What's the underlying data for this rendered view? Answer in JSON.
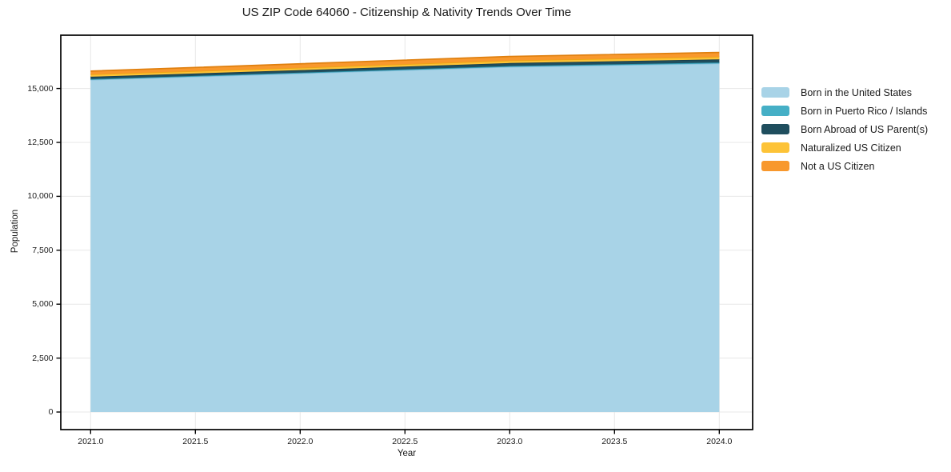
{
  "chart_data": {
    "type": "area",
    "stacked": true,
    "title": "US ZIP Code 64060 - Citizenship & Nativity Trends Over Time",
    "xlabel": "Year",
    "ylabel": "Population",
    "x": [
      2021,
      2022,
      2023,
      2024
    ],
    "series": [
      {
        "name": "Born in the United States",
        "values": [
          15400,
          15700,
          16000,
          16160
        ],
        "color": "#a8d3e7",
        "line_color": "#8ac1dc"
      },
      {
        "name": "Born in Puerto Rico / Islands",
        "values": [
          35,
          35,
          40,
          45
        ],
        "color": "#45afc6",
        "line_color": "#3096ae"
      },
      {
        "name": "Born Abroad of US Parent(s)",
        "values": [
          110,
          115,
          140,
          145
        ],
        "color": "#1f4e5e",
        "line_color": "#173d4b"
      },
      {
        "name": "Naturalized US Citizen",
        "values": [
          110,
          110,
          115,
          120
        ],
        "color": "#fdc337",
        "line_color": "#eca512"
      },
      {
        "name": "Not a US Citizen",
        "values": [
          150,
          185,
          190,
          200
        ],
        "color": "#f8982d",
        "line_color": "#df7f0e"
      }
    ],
    "totals": [
      15805,
      16145,
      16485,
      16670
    ],
    "x_ticks": [
      2021.0,
      2021.5,
      2022.0,
      2022.5,
      2023.0,
      2023.5,
      2024.0
    ],
    "x_tick_labels": [
      "2021.0",
      "2021.5",
      "2022.0",
      "2022.5",
      "2023.0",
      "2023.5",
      "2024.0"
    ],
    "y_ticks": [
      0,
      2500,
      5000,
      7500,
      10000,
      12500,
      15000
    ],
    "y_tick_labels": [
      "0",
      "2,500",
      "5,000",
      "7,500",
      "10,000",
      "12,500",
      "15,000"
    ],
    "x_range": [
      2020.8576,
      2024.1591
    ],
    "y_range": [
      -815,
      17470
    ],
    "grid": true,
    "legend_position": "right"
  }
}
